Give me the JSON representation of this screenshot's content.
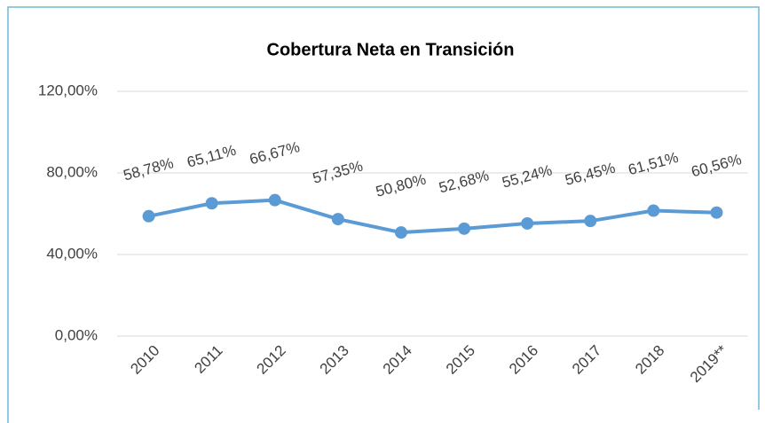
{
  "chart_data": {
    "type": "line",
    "title": "Cobertura Neta en Transición",
    "categories": [
      "2010",
      "2011",
      "2012",
      "2013",
      "2014",
      "2015",
      "2016",
      "2017",
      "2018",
      "2019**"
    ],
    "series": [
      {
        "name": "Cobertura Neta en Transición",
        "color": "#5b9bd5",
        "values": [
          58.78,
          65.11,
          66.67,
          57.35,
          50.8,
          52.68,
          55.24,
          56.45,
          61.51,
          60.56
        ],
        "value_labels": [
          "58,78%",
          "65,11%",
          "66,67%",
          "57,35%",
          "50,80%",
          "52,68%",
          "55,24%",
          "56,45%",
          "61,51%",
          "60,56%"
        ]
      }
    ],
    "ylim": [
      0,
      120
    ],
    "yticks": [
      {
        "value": 0,
        "label": "0,00%"
      },
      {
        "value": 40,
        "label": "40,00%"
      },
      {
        "value": 80,
        "label": "80,00%"
      },
      {
        "value": 120,
        "label": "120,00%"
      }
    ],
    "grid": true
  }
}
